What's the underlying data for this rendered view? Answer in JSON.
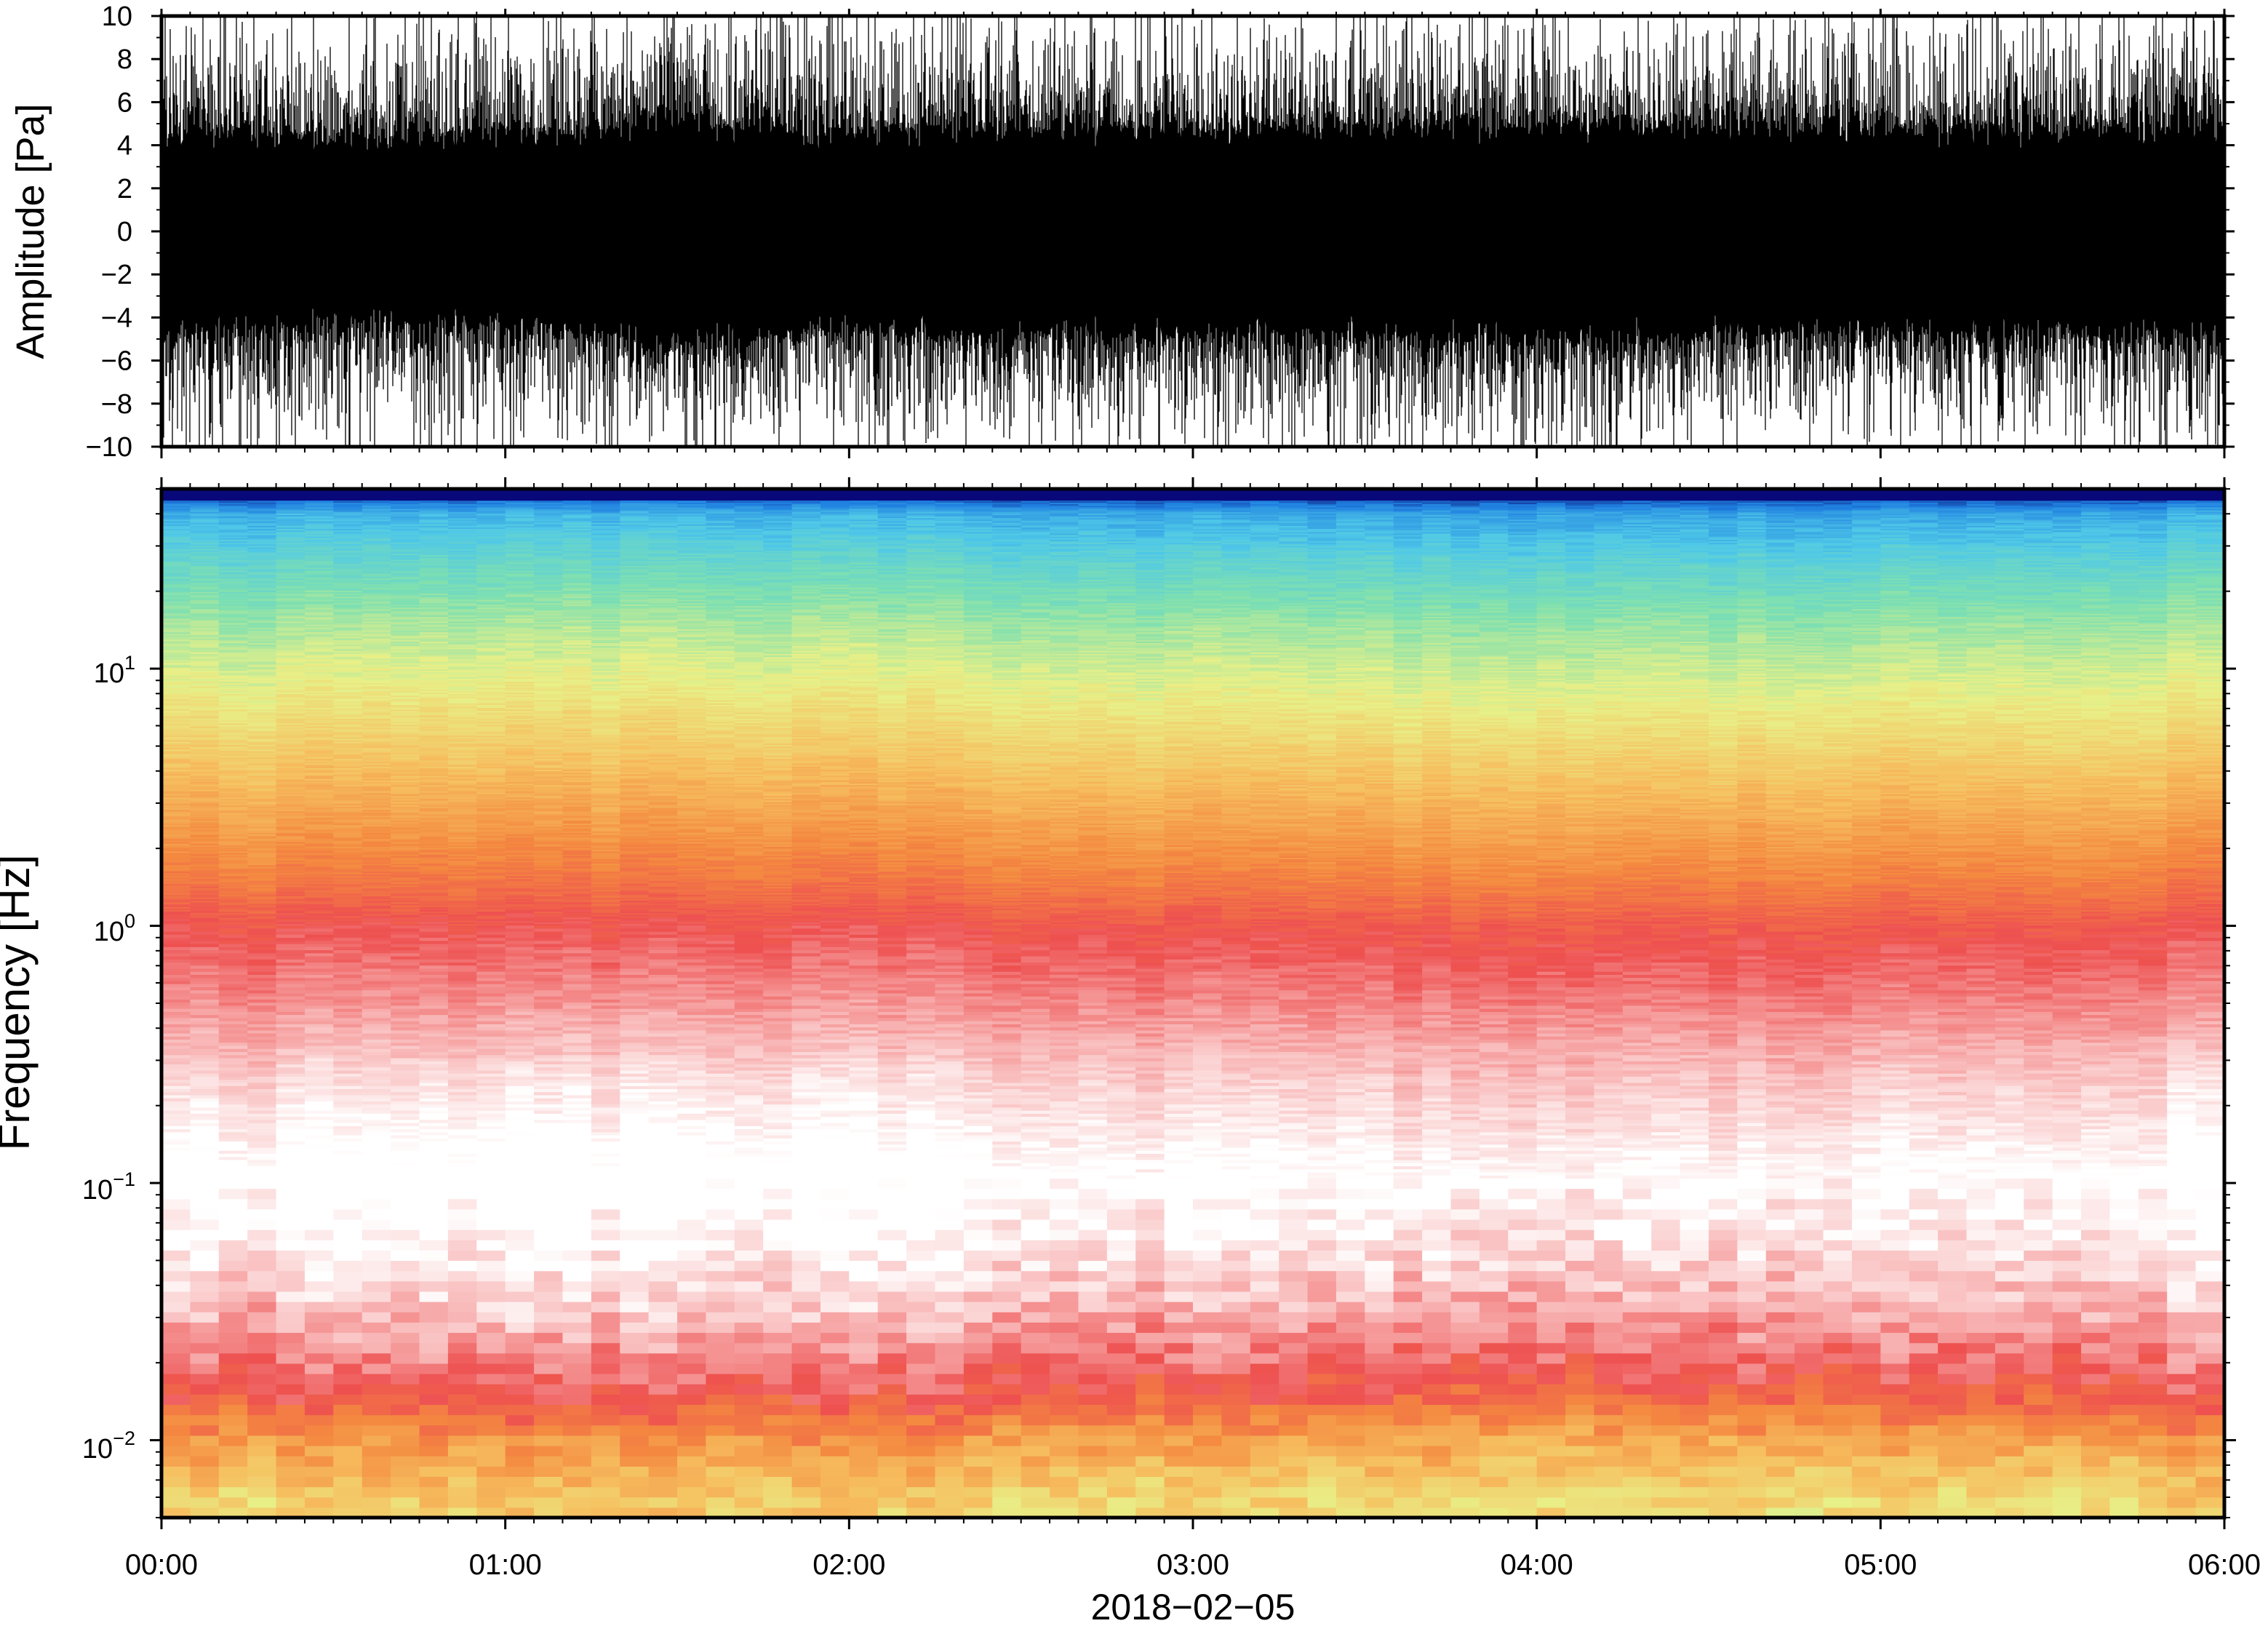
{
  "chart_data": [
    {
      "type": "line",
      "panel": "waveform",
      "ylabel": "Amplitude [Pa]",
      "ylim": [
        -10,
        10
      ],
      "yticks": [
        -10,
        -8,
        -6,
        -4,
        -2,
        0,
        2,
        4,
        6,
        8,
        10
      ],
      "ytick_labels": [
        "−10",
        "−8",
        "−6",
        "−4",
        "−2",
        "0",
        "2",
        "4",
        "6",
        "8",
        "10"
      ],
      "xlim": [
        "00:00",
        "06:00"
      ],
      "grid": false,
      "envelope": {
        "time": [
          "00:00",
          "00:30",
          "01:00",
          "01:30",
          "02:00",
          "02:30",
          "03:00",
          "03:30",
          "04:00",
          "04:30",
          "05:00",
          "05:30",
          "06:00"
        ],
        "peak_abs_pa": [
          10,
          10,
          10,
          10,
          10,
          10,
          10,
          10,
          10,
          10,
          10,
          10,
          10
        ],
        "dense_core_abs_pa": [
          4.5,
          4,
          4.2,
          4.8,
          4.2,
          4.6,
          4.4,
          4.5,
          4.8,
          4.5,
          4.4,
          4.5,
          4.5
        ]
      }
    },
    {
      "type": "heatmap",
      "panel": "spectrogram",
      "ylabel": "Frequency [Hz]",
      "yscale": "log",
      "ylim": [
        0.005,
        50
      ],
      "yticks": [
        0.01,
        0.1,
        1,
        10
      ],
      "ytick_labels": [
        {
          "base": "10",
          "exp": "−2"
        },
        {
          "base": "10",
          "exp": "−1"
        },
        {
          "base": "10",
          "exp": "0"
        },
        {
          "base": "10",
          "exp": "1"
        }
      ],
      "xlabel": "2018−02−05",
      "xlim": [
        "00:00",
        "06:00"
      ],
      "xticks": [
        "00:00",
        "01:00",
        "02:00",
        "03:00",
        "04:00",
        "05:00",
        "06:00"
      ],
      "colormap": [
        "#0a0a6e",
        "#1f7fe0",
        "#4fc8e8",
        "#7fe0b0",
        "#e8f088",
        "#f6c060",
        "#f48a40",
        "#ee5050",
        "#f8b0b0",
        "#ffffff"
      ],
      "power_profile": {
        "frequency_hz": [
          50,
          40,
          25,
          15,
          10,
          6,
          3,
          1.5,
          1,
          0.5,
          0.25,
          0.1,
          0.05,
          0.03,
          0.02,
          0.015,
          0.01,
          0.006
        ],
        "level_index": [
          0,
          1.6,
          2.5,
          3.3,
          3.8,
          4.4,
          5.3,
          6.2,
          6.9,
          7.6,
          8.4,
          9.2,
          8.6,
          8.0,
          7.3,
          6.8,
          5.6,
          4.6
        ]
      }
    }
  ]
}
